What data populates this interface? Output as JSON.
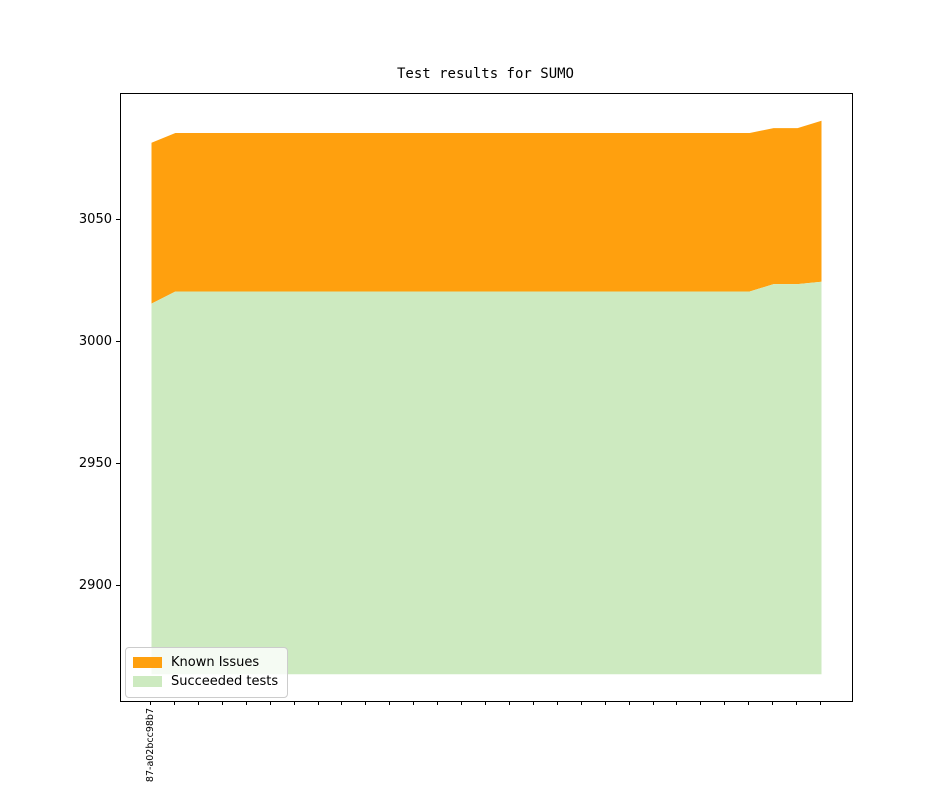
{
  "chart_data": {
    "type": "area",
    "stacked": true,
    "title": "Test results for SUMO",
    "xlabel": "",
    "ylabel": "",
    "x_tick_labels": [
      "87-a02bcc98b7",
      "",
      "",
      "",
      "",
      "",
      "",
      "",
      "",
      "",
      "",
      "",
      "",
      "",
      "",
      "",
      "",
      "",
      "",
      "",
      "",
      "",
      "",
      "",
      "",
      "",
      "",
      "",
      ""
    ],
    "series": [
      {
        "name": "Succeeded tests",
        "color": "#cdeac0",
        "values": [
          3016,
          3021,
          3021,
          3021,
          3021,
          3021,
          3021,
          3021,
          3021,
          3021,
          3021,
          3021,
          3021,
          3021,
          3021,
          3021,
          3021,
          3021,
          3021,
          3021,
          3021,
          3021,
          3021,
          3021,
          3021,
          3021,
          3024,
          3024,
          3025
        ]
      },
      {
        "name": "Known Issues",
        "color": "#ffa00e",
        "values": [
          66,
          65,
          65,
          65,
          65,
          65,
          65,
          65,
          65,
          65,
          65,
          65,
          65,
          65,
          65,
          65,
          65,
          65,
          65,
          65,
          65,
          65,
          65,
          65,
          65,
          65,
          64,
          64,
          66
        ]
      }
    ],
    "baseline": 2864,
    "ylim": [
      2853,
      3102
    ],
    "yticks": [
      2900,
      2950,
      3000,
      3050
    ],
    "grid": false,
    "legend_position": "lower left"
  },
  "legend": {
    "items": [
      {
        "label": "Known Issues",
        "color": "#ffa00e"
      },
      {
        "label": "Succeeded tests",
        "color": "#cdeac0"
      }
    ]
  }
}
